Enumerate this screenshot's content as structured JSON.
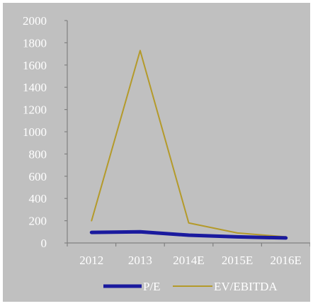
{
  "chart_data": {
    "type": "line",
    "categories": [
      "2012",
      "2013",
      "2014E",
      "2015E",
      "2016E"
    ],
    "ylim": [
      0,
      2000
    ],
    "yticks": [
      "0",
      "200",
      "400",
      "600",
      "800",
      "1000",
      "1200",
      "1400",
      "1600",
      "1800",
      "2000"
    ],
    "series": [
      {
        "name": "P/E",
        "values": [
          95,
          100,
          70,
          55,
          45
        ],
        "color": "#1a1a9e"
      },
      {
        "name": "EV/EBITDA",
        "values": [
          200,
          1730,
          180,
          90,
          55
        ],
        "color": "#b49a2a"
      }
    ],
    "grid": false,
    "legend_position": "bottom"
  }
}
